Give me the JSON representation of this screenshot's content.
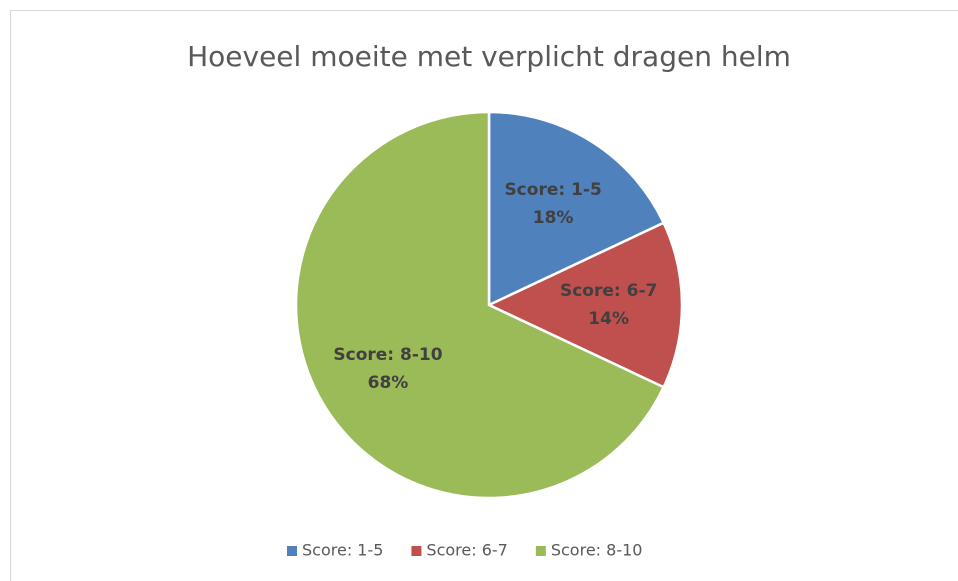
{
  "chart_data": {
    "type": "pie",
    "title": "Hoeveel moeite met verplicht dragen helm",
    "categories": [
      "Score: 1-5",
      "Score: 6-7",
      "Score: 8-10"
    ],
    "values": [
      18,
      14,
      68
    ],
    "value_labels": [
      "18%",
      "14%",
      "68%"
    ],
    "colors": [
      "#4f81bd",
      "#c0504d",
      "#9bbb59"
    ],
    "legend": "bottom"
  }
}
